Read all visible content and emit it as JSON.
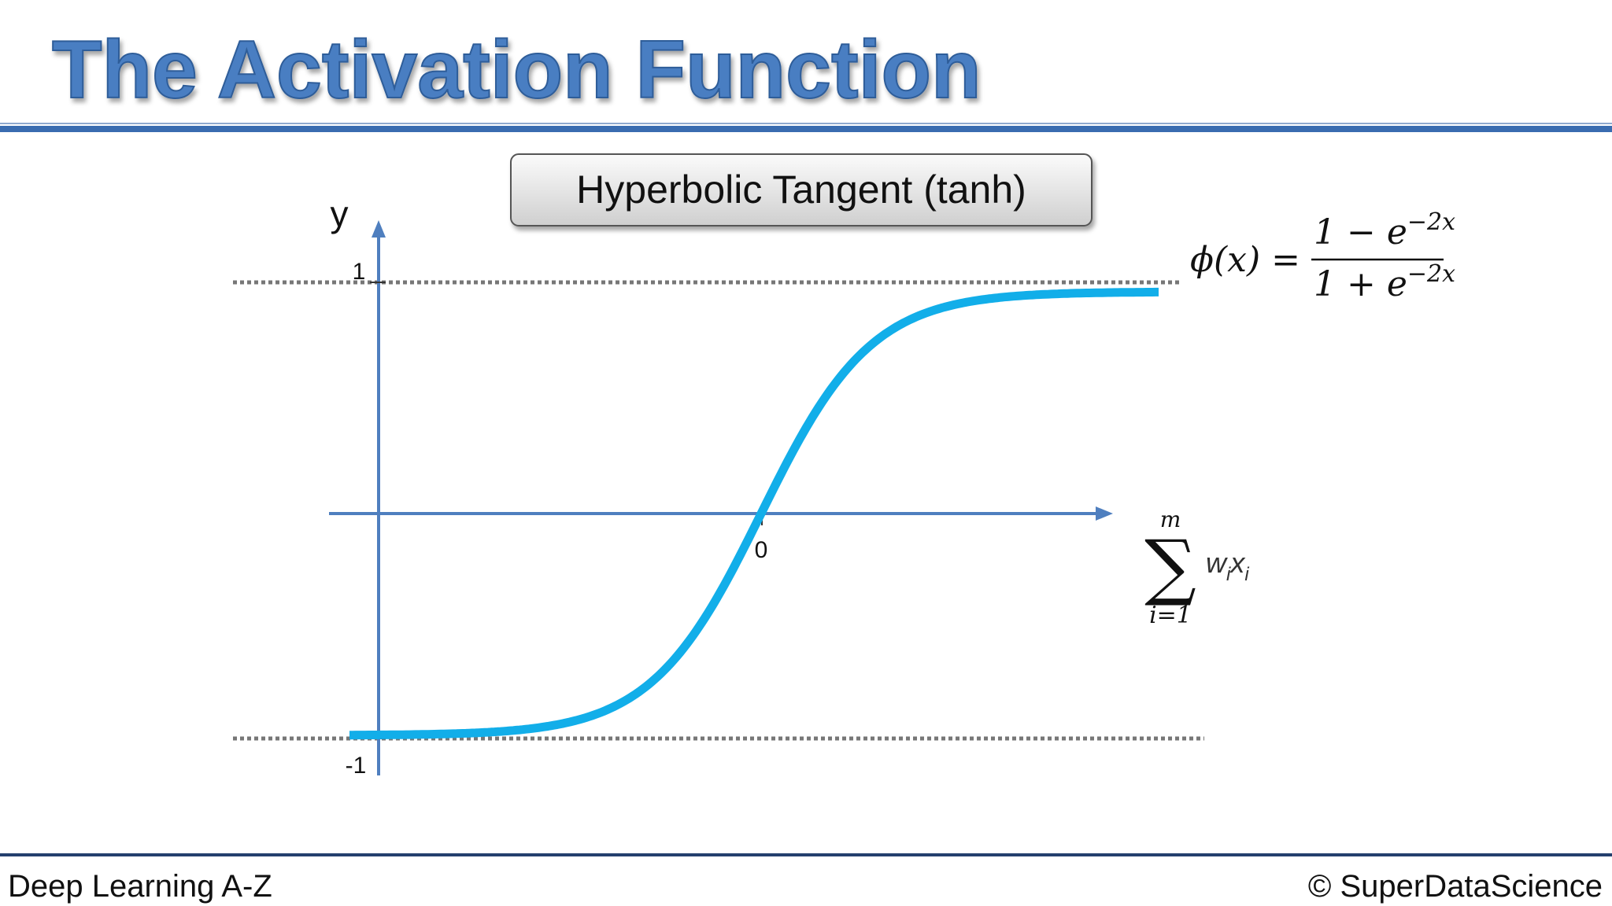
{
  "header": {
    "title": "The Activation Function"
  },
  "panel": {
    "label": "Hyperbolic Tangent (tanh)"
  },
  "axes": {
    "y_label": "y",
    "upper_tick": "1",
    "lower_tick": "-1",
    "origin_tick": "0"
  },
  "formula": {
    "lhs": "ϕ(x) =",
    "numerator": {
      "base": "1 − e",
      "exponent": "−2x"
    },
    "denominator": {
      "base": "1 + e",
      "exponent": "−2x"
    }
  },
  "x_axis_label": {
    "symbol": "∑",
    "upper": "m",
    "lower": "i=1",
    "term": [
      {
        "base": "w",
        "sub": "i"
      },
      {
        "base": "x",
        "sub": "i"
      }
    ]
  },
  "footer": {
    "left": "Deep Learning A-Z",
    "right": "© SuperDataScience"
  }
}
